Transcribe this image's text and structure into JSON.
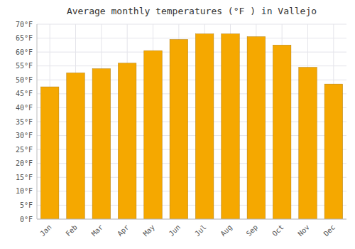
{
  "chart_data": {
    "type": "bar",
    "title": "Average monthly temperatures (°F ) in Vallejo",
    "categories": [
      "Jan",
      "Feb",
      "Mar",
      "Apr",
      "May",
      "Jun",
      "Jul",
      "Aug",
      "Sep",
      "Oct",
      "Nov",
      "Dec"
    ],
    "values": [
      47.5,
      52.5,
      54.0,
      56.0,
      60.5,
      64.5,
      66.5,
      66.5,
      65.5,
      62.5,
      54.5,
      48.5
    ],
    "color": "#F5A800",
    "ylim": [
      0,
      70
    ],
    "yticks": [
      {
        "value": 0,
        "label": "0°F"
      },
      {
        "value": 5,
        "label": "5°F"
      },
      {
        "value": 10,
        "label": "10°F"
      },
      {
        "value": 15,
        "label": "15°F"
      },
      {
        "value": 20,
        "label": "20°F"
      },
      {
        "value": 25,
        "label": "25°F"
      },
      {
        "value": 30,
        "label": "30°F"
      },
      {
        "value": 35,
        "label": "35°F"
      },
      {
        "value": 40,
        "label": "40°F"
      },
      {
        "value": 45,
        "label": "45°F"
      },
      {
        "value": 50,
        "label": "50°F"
      },
      {
        "value": 55,
        "label": "55°F"
      },
      {
        "value": 60,
        "label": "60°F"
      },
      {
        "value": 65,
        "label": "65°F"
      },
      {
        "value": 70,
        "label": "70°F"
      }
    ],
    "grid": true
  }
}
